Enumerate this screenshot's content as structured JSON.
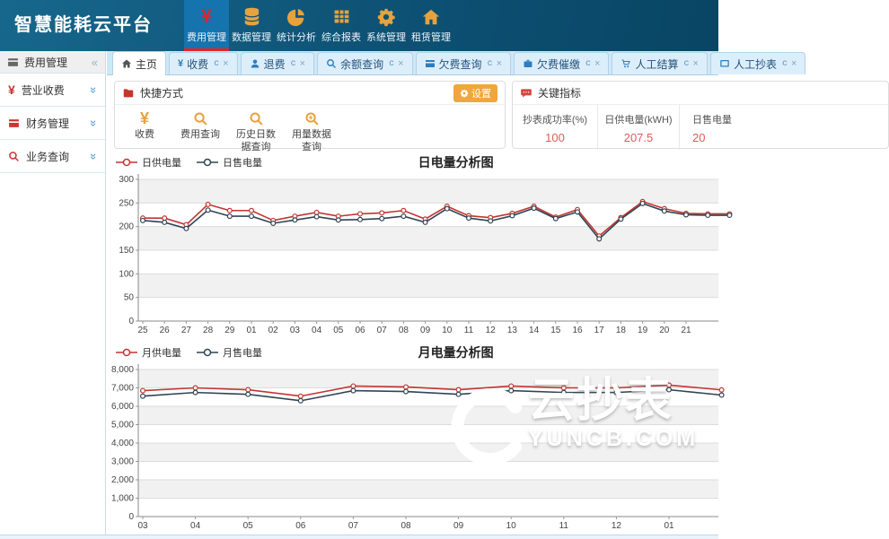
{
  "header": {
    "title": "智慧能耗云平台",
    "nav": [
      {
        "label": "费用管理",
        "icon": "yen-icon",
        "active": true
      },
      {
        "label": "数据管理",
        "icon": "database-icon",
        "active": false
      },
      {
        "label": "统计分析",
        "icon": "pie-chart-icon",
        "active": false
      },
      {
        "label": "综合报表",
        "icon": "table-icon",
        "active": false
      },
      {
        "label": "系统管理",
        "icon": "gear-icon",
        "active": false
      },
      {
        "label": "租赁管理",
        "icon": "home-icon",
        "active": false
      }
    ]
  },
  "sidebar": {
    "header": {
      "label": "费用管理"
    },
    "items": [
      {
        "label": "营业收费",
        "icon": "yen-icon"
      },
      {
        "label": "财务管理",
        "icon": "card-icon"
      },
      {
        "label": "业务查询",
        "icon": "search-icon"
      }
    ]
  },
  "tabs": [
    {
      "label": "主页",
      "icon": "home-icon",
      "active": true
    },
    {
      "label": "收费",
      "icon": "yen-icon",
      "active": false
    },
    {
      "label": "退费",
      "icon": "user-icon",
      "active": false
    },
    {
      "label": "余额查询",
      "icon": "search-icon",
      "active": false
    },
    {
      "label": "欠费查询",
      "icon": "card-icon",
      "active": false
    },
    {
      "label": "欠费催缴",
      "icon": "briefcase-icon",
      "active": false
    },
    {
      "label": "人工结算",
      "icon": "cart-icon",
      "active": false
    },
    {
      "label": "人工抄表",
      "icon": "tablet-icon",
      "active": false
    }
  ],
  "tab_controls": {
    "refresh": "c",
    "close": "×"
  },
  "quick_panel": {
    "title": "快捷方式",
    "settings_label": "设置",
    "shortcuts": [
      {
        "label": "收费",
        "icon": "yen-icon"
      },
      {
        "label": "费用查询",
        "icon": "search-icon"
      },
      {
        "label": "历史日数据查询",
        "icon": "search-icon"
      },
      {
        "label": "用量数据查询",
        "icon": "search-plus-icon"
      }
    ]
  },
  "indicators": {
    "title": "关键指标",
    "items": [
      {
        "label": "抄表成功率(%)",
        "value": "100"
      },
      {
        "label": "日供电量(kWH)",
        "value": "207.5"
      },
      {
        "label": "日售电量",
        "value": "20"
      }
    ]
  },
  "watermark": {
    "text": "云抄表",
    "subtext": "YUNCB.COM"
  },
  "colors": {
    "header_blue": "#0d5174",
    "active_nav_blue": "#1573ae",
    "accent_red": "#e62222",
    "icon_orange": "#e6a23c",
    "kpi_value_red": "#e05a5a",
    "series_supply_red": "#c23531",
    "series_sale_dark": "#2f4554"
  },
  "chart_data": [
    {
      "type": "line",
      "title": "日电量分析图",
      "xlabel": "",
      "ylabel": "",
      "legend_position": "top-left",
      "grid_bands": true,
      "ylim": [
        0,
        300
      ],
      "ytick": 50,
      "xstep": 24.2,
      "x": [
        "25",
        "26",
        "27",
        "28",
        "29",
        "01",
        "02",
        "03",
        "04",
        "05",
        "06",
        "07",
        "08",
        "09",
        "10",
        "11",
        "12",
        "13",
        "14",
        "15",
        "16",
        "17",
        "18",
        "19",
        "20",
        "21",
        "",
        ""
      ],
      "series": [
        {
          "name": "日供电量",
          "color": "#c23531",
          "values": [
            218,
            218,
            204,
            247,
            234,
            234,
            213,
            222,
            230,
            222,
            227,
            229,
            234,
            216,
            243,
            223,
            219,
            228,
            243,
            220,
            236,
            180,
            219,
            253,
            238,
            228,
            227,
            227
          ]
        },
        {
          "name": "日售电量",
          "color": "#2f4554",
          "values": [
            213,
            209,
            196,
            235,
            222,
            222,
            207,
            214,
            221,
            214,
            215,
            217,
            222,
            209,
            238,
            218,
            212,
            223,
            239,
            217,
            231,
            174,
            216,
            249,
            233,
            225,
            224,
            224
          ]
        }
      ]
    },
    {
      "type": "line",
      "title": "月电量分析图",
      "xlabel": "",
      "ylabel": "",
      "legend_position": "top-left",
      "grid_bands": true,
      "ylim": [
        0,
        8000
      ],
      "ytick": 1000,
      "xstep": 58.6,
      "x": [
        "03",
        "04",
        "05",
        "06",
        "07",
        "08",
        "09",
        "10",
        "11",
        "12",
        "01",
        ""
      ],
      "series": [
        {
          "name": "月供电量",
          "color": "#c23531",
          "values": [
            6850,
            7000,
            6900,
            6550,
            7100,
            7050,
            6900,
            7100,
            7000,
            7000,
            7150,
            6890
          ]
        },
        {
          "name": "月售电量",
          "color": "#2f4554",
          "values": [
            6550,
            6750,
            6650,
            6300,
            6850,
            6800,
            6650,
            6850,
            6750,
            6750,
            6900,
            6610
          ]
        }
      ]
    }
  ]
}
